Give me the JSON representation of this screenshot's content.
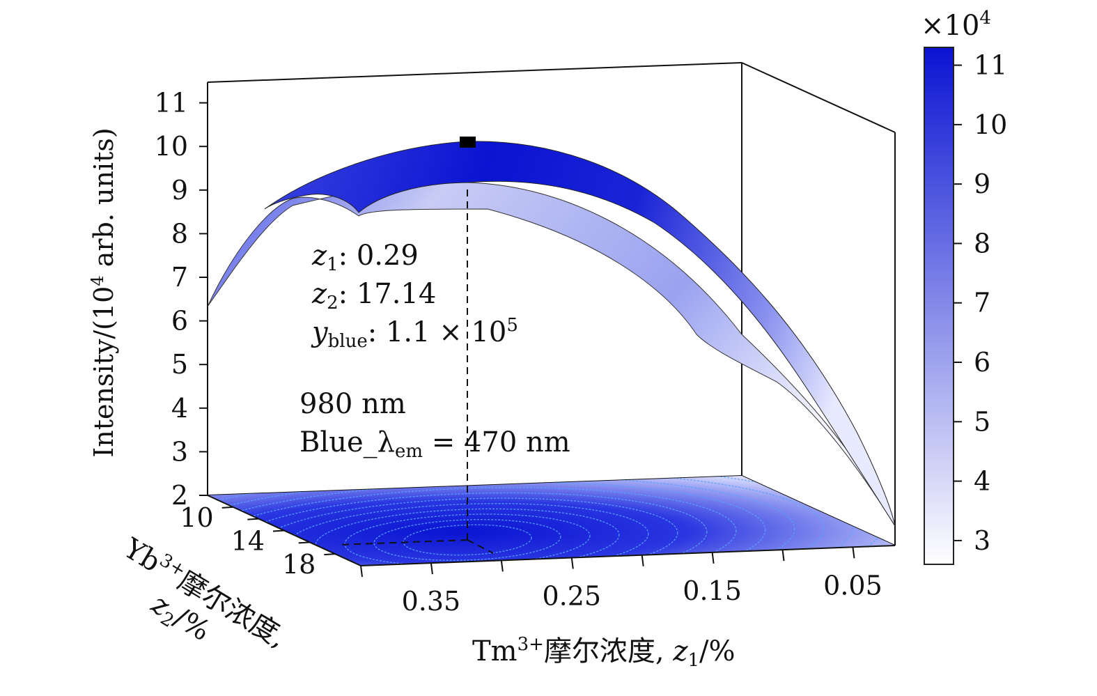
{
  "chart_data": {
    "type": "surface3d",
    "title": "",
    "x_axis": {
      "label": "Tm³⁺摩尔浓度, z₁/%",
      "label_main": "Tm",
      "label_sup": "3+",
      "label_rest": "摩尔浓度, ",
      "label_var": "z",
      "label_sub": "1",
      "label_tail": "/%",
      "ticks": [
        "0.35",
        "0.25",
        "0.15",
        "0.05"
      ],
      "tick_values": [
        0.35,
        0.25,
        0.15,
        0.05
      ],
      "range": [
        0.4,
        0.02
      ]
    },
    "y_axis": {
      "label": "Yb³⁺摩尔浓度, z₂/%",
      "label_main": "Yb",
      "label_sup": "3+",
      "label_rest": "摩尔浓度,",
      "label_var": "z",
      "label_sub": "2",
      "label_tail": "/%",
      "ticks": [
        "10",
        "14",
        "18"
      ],
      "tick_values": [
        10,
        14,
        18
      ],
      "range": [
        8,
        20
      ]
    },
    "z_axis": {
      "label": "Intensity/(10⁴ arb. units)",
      "label_pre": "Intensity/(10",
      "label_sup": "4",
      "label_post": " arb. units)",
      "ticks": [
        "2",
        "3",
        "4",
        "5",
        "6",
        "7",
        "8",
        "9",
        "10",
        "11"
      ],
      "tick_values": [
        2,
        3,
        4,
        5,
        6,
        7,
        8,
        9,
        10,
        11
      ],
      "range": [
        2,
        11.5
      ]
    },
    "colorbar": {
      "multiplier": "×10",
      "multiplier_exp": "4",
      "ticks": [
        "3",
        "4",
        "5",
        "6",
        "7",
        "8",
        "9",
        "10",
        "11"
      ],
      "tick_values": [
        3,
        4,
        5,
        6,
        7,
        8,
        9,
        10,
        11
      ],
      "range": [
        2.6,
        11.3
      ],
      "color_low": "#ffffff",
      "color_high": "#0a14d2"
    },
    "optimum": {
      "z1": 0.29,
      "z2": 17.14,
      "y_blue_mantissa": "1.1",
      "y_blue_exp": "5",
      "line1_var": "z",
      "line1_sub": "1",
      "line1_val": ": 0.29",
      "line2_var": "z",
      "line2_sub": "2",
      "line2_val": ": 17.14",
      "line3_var": "y",
      "line3_sub": "blue",
      "line3_val": ": 1.1 × 10"
    },
    "conditions": {
      "line1": "980 nm",
      "line2_pre": "Blue_λ",
      "line2_sub": "em",
      "line2_post": " = 470 nm"
    },
    "surface_color": "#0a14d2",
    "contour_color": "#5aa0ff"
  }
}
